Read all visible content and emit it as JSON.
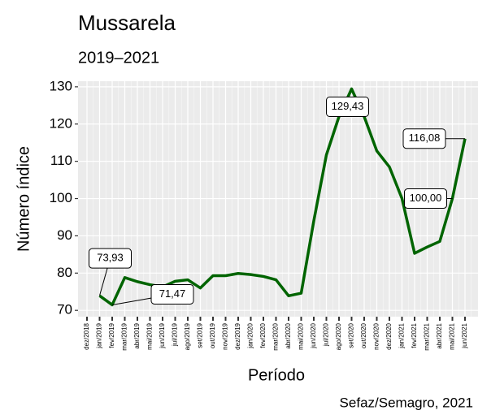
{
  "chart_data": {
    "type": "line",
    "title": "Mussarela",
    "subtitle": "2019–2021",
    "x_label": "Período",
    "y_label": "Número índice",
    "caption": "Sefaz/Semagro, 2021",
    "categories": [
      "dez/2018",
      "jan/2019",
      "fev/2019",
      "mar/2019",
      "abr/2019",
      "mai/2019",
      "jun/2019",
      "jul/2019",
      "ago/2019",
      "set/2019",
      "out/2019",
      "nov/2019",
      "dez/2019",
      "jan/2020",
      "fev/2020",
      "mar/2020",
      "abr/2020",
      "mai/2020",
      "jun/2020",
      "jul/2020",
      "ago/2020",
      "set/2020",
      "out/2020",
      "nov/2020",
      "dez/2020",
      "jan/2021",
      "fev/2021",
      "mar/2021",
      "abr/2021",
      "mai/2021",
      "jun/2021"
    ],
    "series": [
      {
        "color": "#006400",
        "values": [
          null,
          73.93,
          71.47,
          78.8,
          77.7,
          76.9,
          76.3,
          77.8,
          78.2,
          76.0,
          79.3,
          79.3,
          79.9,
          79.6,
          79.1,
          78.2,
          73.9,
          74.6,
          94.0,
          111.7,
          122.0,
          129.43,
          122.0,
          112.8,
          108.5,
          100.0,
          85.3,
          87.0,
          88.5,
          100.0,
          116.08
        ],
        "value_labels": [
          null,
          "73,93",
          "71,47",
          null,
          null,
          null,
          null,
          null,
          null,
          null,
          null,
          null,
          null,
          null,
          null,
          null,
          null,
          null,
          null,
          null,
          null,
          "129,43",
          null,
          null,
          null,
          null,
          null,
          null,
          null,
          "100,00",
          "116,08"
        ]
      }
    ],
    "ylim": [
      68.3,
      131.5
    ],
    "yticks": [
      70,
      80,
      90,
      100,
      110,
      120,
      130
    ],
    "grid": true
  }
}
